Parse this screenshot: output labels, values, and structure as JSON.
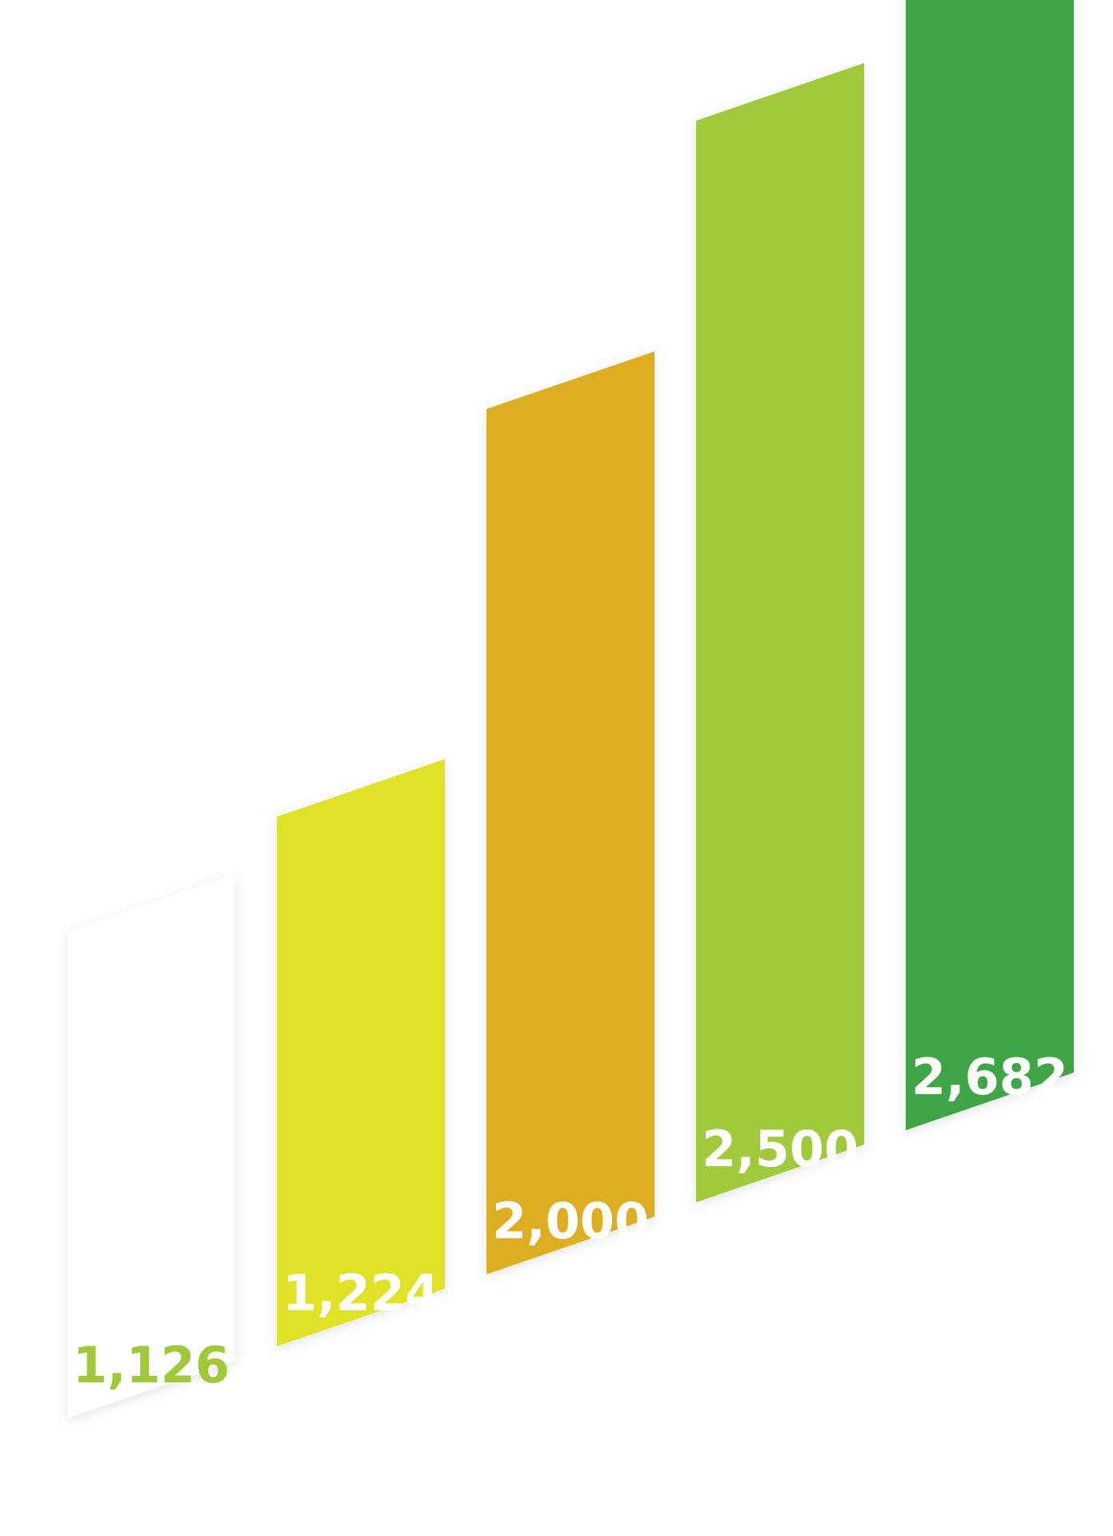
{
  "chart_data": {
    "type": "bar",
    "title": "",
    "xlabel": "",
    "ylabel": "",
    "categories": [
      "",
      "",
      "",
      "",
      ""
    ],
    "values": [
      1126,
      1224,
      2000,
      2500,
      2682
    ],
    "labels": [
      "1,126",
      "1,224",
      "2,000",
      "2,500",
      "2,682"
    ],
    "bar_colors": [
      "#ffffff",
      "#dfe226",
      "#deae21",
      "#a0c93a",
      "#41a546"
    ],
    "label_colors": [
      "#a0c93a",
      "#ffffff",
      "#ffffff",
      "#ffffff",
      "#ffffff"
    ],
    "style": "3d-skewed-bars",
    "grid": false,
    "legend": "none"
  }
}
